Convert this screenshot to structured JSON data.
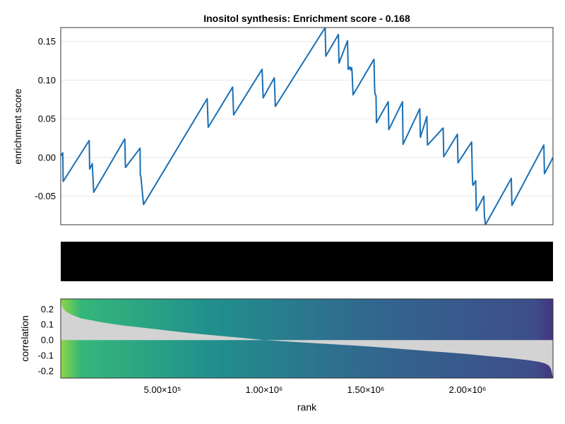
{
  "chart_data": [
    {
      "type": "line",
      "title": "Inositol synthesis: Enrichment score - 0.168",
      "xlabel": "",
      "ylabel": "enrichment score",
      "xlim": [
        1,
        2420000
      ],
      "ylim": [
        -0.087,
        0.168
      ],
      "yticks": [
        -0.05,
        0.0,
        0.05,
        0.1,
        0.15
      ],
      "ytick_labels": [
        "-0.05",
        "0.00",
        "0.05",
        "0.10",
        "0.15"
      ],
      "grid": true,
      "color": "#1a6fb5",
      "series": [
        {
          "x": [
            1,
            10000,
            12000,
            140000,
            142000,
            150000,
            155000,
            162000,
            315000,
            318000,
            390000,
            391000,
            394000,
            407000,
            720000,
            725000,
            845000,
            850000,
            990000,
            995000,
            1050000,
            1055000,
            1300000,
            1303000,
            1365000,
            1368000,
            1410000,
            1413000,
            1422000,
            1425000,
            1430000,
            1432000,
            1437000,
            1540000,
            1543000,
            1545000,
            1548000,
            1550000,
            1552000,
            1610000,
            1613000,
            1680000,
            1683000,
            1765000,
            1768000,
            1800000,
            1803000,
            1880000,
            1883000,
            1950000,
            1953000,
            2020000,
            2023000,
            2025000,
            2027000,
            2040000,
            2043000,
            2080000,
            2083000,
            2085000,
            2088000,
            2215000,
            2218000,
            2375000,
            2378000,
            2420000
          ],
          "y": [
            0.002,
            0.006,
            -0.031,
            0.022,
            -0.015,
            -0.011,
            -0.008,
            -0.045,
            0.024,
            -0.013,
            0.012,
            -0.022,
            -0.025,
            -0.061,
            0.076,
            0.039,
            0.091,
            0.055,
            0.114,
            0.077,
            0.103,
            0.066,
            0.168,
            0.131,
            0.159,
            0.122,
            0.151,
            0.114,
            0.117,
            0.113,
            0.116,
            0.112,
            0.081,
            0.127,
            0.09,
            0.082,
            0.081,
            0.079,
            0.045,
            0.072,
            0.036,
            0.072,
            0.017,
            0.063,
            0.026,
            0.053,
            0.016,
            0.038,
            0.001,
            0.03,
            -0.007,
            0.02,
            -0.018,
            -0.033,
            -0.036,
            -0.03,
            -0.069,
            -0.05,
            -0.077,
            -0.08,
            -0.087,
            -0.027,
            -0.062,
            0.016,
            -0.021,
            0.0
          ]
        }
      ]
    },
    {
      "type": "barcode",
      "title": "",
      "color": "#000000"
    },
    {
      "type": "area",
      "title": "",
      "xlabel": "rank",
      "ylabel": "correlation",
      "xlim": [
        1,
        2420000
      ],
      "ylim": [
        -0.245,
        0.265
      ],
      "xticks": [
        500000,
        1000000,
        1500000,
        2000000
      ],
      "xtick_labels": [
        "5.00×10⁵",
        "1.00×10⁶",
        "1.50×10⁶",
        "2.00×10⁶"
      ],
      "yticks": [
        -0.2,
        -0.1,
        0.0,
        0.1,
        0.2
      ],
      "ytick_labels": [
        "-0.2",
        "-0.1",
        "0.0",
        "0.1",
        "0.2"
      ],
      "fill_color": "#d3d3d3",
      "gradient_colors": [
        "#8fd744",
        "#35b779",
        "#21908d",
        "#31688e",
        "#3d4e8a",
        "#453681"
      ],
      "series": [
        {
          "x": [
            1,
            5000,
            20000,
            50000,
            100000,
            200000,
            300000,
            400000,
            500000,
            600000,
            700000,
            800000,
            900000,
            1000000,
            1100000,
            1200000,
            1300000,
            1400000,
            1500000,
            1600000,
            1700000,
            1800000,
            1900000,
            2000000,
            2100000,
            2200000,
            2300000,
            2350000,
            2380000,
            2400000,
            2410000,
            2420000
          ],
          "y": [
            0.26,
            0.22,
            0.19,
            0.165,
            0.14,
            0.115,
            0.095,
            0.08,
            0.065,
            0.05,
            0.037,
            0.025,
            0.013,
            0.0,
            -0.008,
            -0.016,
            -0.024,
            -0.032,
            -0.04,
            -0.05,
            -0.06,
            -0.07,
            -0.08,
            -0.09,
            -0.103,
            -0.115,
            -0.13,
            -0.14,
            -0.15,
            -0.165,
            -0.185,
            -0.245
          ]
        }
      ]
    }
  ]
}
